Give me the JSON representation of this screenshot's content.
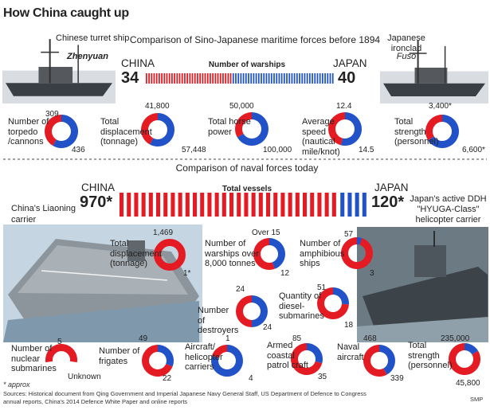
{
  "title": "How China caught up",
  "colors": {
    "china": "#e41b23",
    "japan": "#2152c8"
  },
  "section1": {
    "title": "Comparison of Sino-Japanese maritime forces before 1894",
    "china_label": "CHINA",
    "japan_label": "JAPAN",
    "bar_label": "Number of warships",
    "china_ship_caption": "Chinese turret ship",
    "china_ship_name": "Zhenyuan",
    "japan_ship_caption": "Japanese ironclad",
    "japan_ship_name": "Fusō"
  },
  "section2": {
    "title": "Comparison of naval forces today",
    "china_label": "CHINA",
    "japan_label": "JAPAN",
    "bar_label": "Total vessels",
    "china_ship_caption_1": "China's Liaoning",
    "china_ship_caption_2": "carrier",
    "japan_ship_caption_1": "Japan's active DDH",
    "japan_ship_caption_2": "\"HYUGA-Class\"",
    "japan_ship_caption_3": "helicopter carrier"
  },
  "footnote": "* approx",
  "source_1": "Sources: Historical document from Qing Government and Imperial Japanese Navy General Staff, US Department of Defence to Congress",
  "source_2": "annual reports, China's 2014 Defence White Paper and online reports",
  "credit": "SMP",
  "chart_data": [
    {
      "type": "bar",
      "title": "Number of warships",
      "categories": [
        "CHINA",
        "JAPAN"
      ],
      "values": [
        34,
        40
      ],
      "value_labels": [
        "34",
        "40"
      ]
    },
    {
      "type": "pie",
      "title": "Comparison of Sino-Japanese maritime forces before 1894",
      "items": [
        {
          "label": "Number of torpedo /cannons",
          "china": 309,
          "japan": 436,
          "china_label": "309",
          "japan_label": "436"
        },
        {
          "label": "Total displacement (tonnage)",
          "china": 41800,
          "japan": 57448,
          "china_label": "41,800",
          "japan_label": "57,448"
        },
        {
          "label": "Total horse power",
          "china": 50000,
          "japan": 100000,
          "china_label": "50,000",
          "japan_label": "100,000"
        },
        {
          "label": "Average speed (nautical mile/knot)",
          "china": 12.4,
          "japan": 14.5,
          "china_label": "12.4",
          "japan_label": "14.5"
        },
        {
          "label": "Total strength (personnel)",
          "china": 3400,
          "japan": 6600,
          "china_label": "3,400*",
          "japan_label": "6,600*"
        }
      ]
    },
    {
      "type": "bar",
      "title": "Total vessels",
      "categories": [
        "CHINA",
        "JAPAN"
      ],
      "values": [
        970,
        120
      ],
      "value_labels": [
        "970*",
        "120*"
      ]
    },
    {
      "type": "pie",
      "title": "Comparison of naval forces today",
      "items": [
        {
          "label": "Total displacement (tonnage)",
          "china": 1469,
          "japan": 1,
          "china_label": "1,469",
          "japan_label": "1*"
        },
        {
          "label": "Number of warships over 8,000 tonnes",
          "china": 15,
          "japan": 12,
          "china_label": "Over 15",
          "japan_label": "12"
        },
        {
          "label": "Number of amphibious ships",
          "china": 57,
          "japan": 3,
          "china_label": "57",
          "japan_label": "3"
        },
        {
          "label": "Number of destroyers",
          "china": 24,
          "japan": 24,
          "china_label": "24",
          "japan_label": "24"
        },
        {
          "label": "Quantity of diesel-submarines",
          "china": 51,
          "japan": 18,
          "china_label": "51",
          "japan_label": "18"
        },
        {
          "label": "Number of nuclear submarines",
          "china": 5,
          "japan": null,
          "china_label": "5",
          "japan_label": "Unknown"
        },
        {
          "label": "Number of frigates",
          "china": 49,
          "japan": 22,
          "china_label": "49",
          "japan_label": "22"
        },
        {
          "label": "Aircraft/ helicopter carriers",
          "china": 1,
          "japan": 4,
          "china_label": "1",
          "japan_label": "4"
        },
        {
          "label": "Armed coastal patrol craft",
          "china": 85,
          "japan": 35,
          "china_label": "85",
          "japan_label": "35"
        },
        {
          "label": "Naval aircraft",
          "china": 468,
          "japan": 339,
          "china_label": "468",
          "japan_label": "339"
        },
        {
          "label": "Total strength (personnel)",
          "china": 235000,
          "japan": 45800,
          "china_label": "235,000",
          "japan_label": "45,800"
        }
      ]
    }
  ]
}
